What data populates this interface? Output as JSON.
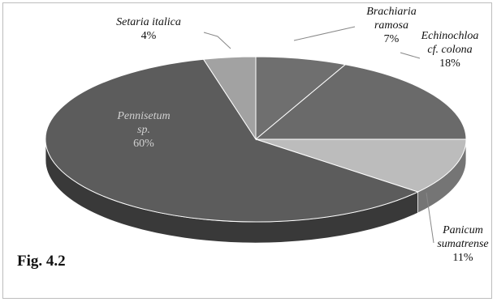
{
  "caption": "Fig. 4.2",
  "colors": {
    "background": "#ffffff",
    "frame": "#bdbdbd",
    "label_text": "#111111",
    "inside_label_text": "#d0d0d0",
    "leader": "#888888"
  },
  "chart_data": {
    "type": "pie",
    "title": "",
    "three_d": true,
    "legend": "none",
    "slices": [
      {
        "name": "Brachiaria ramosa",
        "name_lines": [
          "Brachiaria",
          "ramosa"
        ],
        "value": 7,
        "label": "7%",
        "color": "#6f6f6f",
        "label_inside": false
      },
      {
        "name": "Echinochloa cf. colona",
        "name_lines": [
          "Echinochloa",
          "cf. colona"
        ],
        "value": 18,
        "label": "18%",
        "color": "#6a6a6a",
        "label_inside": false
      },
      {
        "name": "Panicum sumatrense",
        "name_lines": [
          "Panicum",
          "sumatrense"
        ],
        "value": 11,
        "label": "11%",
        "color": "#bcbcbc",
        "label_inside": false
      },
      {
        "name": "Pennisetum sp.",
        "name_lines": [
          "Pennisetum",
          "sp."
        ],
        "value": 60,
        "label": "60%",
        "color": "#5c5c5c",
        "label_inside": true
      },
      {
        "name": "Setaria italica",
        "name_lines": [
          "Setaria italica"
        ],
        "value": 4,
        "label": "4%",
        "color": "#a2a2a2",
        "label_inside": false
      }
    ]
  }
}
